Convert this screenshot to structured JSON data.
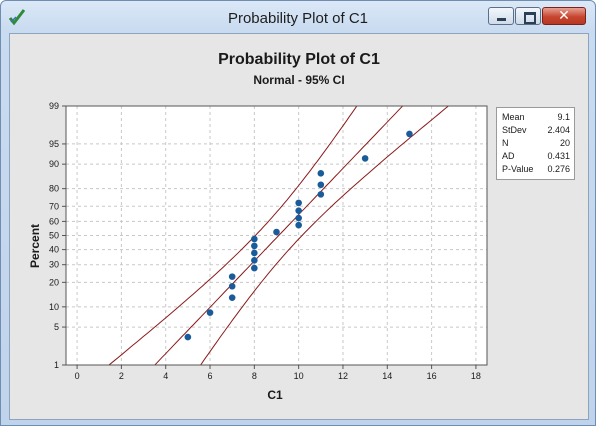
{
  "window": {
    "title": "Probability Plot of C1",
    "icon": "minitab-graph-icon",
    "controls": {
      "minimize": "minimize-icon",
      "maximize": "maximize-icon",
      "close": "close-icon"
    }
  },
  "chart_data": {
    "type": "scatter",
    "title": "Probability Plot of C1",
    "subtitle": "Normal - 95% CI",
    "xlabel": "C1",
    "ylabel": "Percent",
    "xlim": [
      -0.5,
      18.5
    ],
    "ylim_percent": [
      1,
      99
    ],
    "y_scale": "normal-probability",
    "x_ticks": [
      "0",
      "2",
      "4",
      "6",
      "8",
      "10",
      "12",
      "14",
      "16",
      "18"
    ],
    "y_ticks": [
      "1",
      "5",
      "10",
      "20",
      "30",
      "40",
      "50",
      "60",
      "70",
      "80",
      "90",
      "95",
      "99"
    ],
    "grid": true,
    "points": [
      {
        "x": 5,
        "percent": 3.4
      },
      {
        "x": 6,
        "percent": 8.3
      },
      {
        "x": 7,
        "percent": 13.2
      },
      {
        "x": 7,
        "percent": 18.1
      },
      {
        "x": 7,
        "percent": 23.0
      },
      {
        "x": 8,
        "percent": 27.9
      },
      {
        "x": 8,
        "percent": 32.8
      },
      {
        "x": 8,
        "percent": 37.7
      },
      {
        "x": 8,
        "percent": 42.6
      },
      {
        "x": 8,
        "percent": 47.5
      },
      {
        "x": 9,
        "percent": 52.5
      },
      {
        "x": 10,
        "percent": 57.4
      },
      {
        "x": 10,
        "percent": 62.3
      },
      {
        "x": 10,
        "percent": 67.2
      },
      {
        "x": 10,
        "percent": 72.1
      },
      {
        "x": 11,
        "percent": 77.0
      },
      {
        "x": 11,
        "percent": 81.9
      },
      {
        "x": 11,
        "percent": 86.8
      },
      {
        "x": 13,
        "percent": 91.7
      },
      {
        "x": 15,
        "percent": 96.6
      }
    ],
    "fit_line": {
      "mean": 9.1,
      "stdev": 2.404
    },
    "confidence_band": {
      "level": "95%",
      "n": 20
    },
    "colors": {
      "points": "#1a5b9a",
      "lines": "#8b1a1a",
      "grid": "#c8c8c8",
      "plot_bg": "#ffffff"
    },
    "legend_placement": "right"
  },
  "stats": [
    {
      "label": "Mean",
      "value": "9.1"
    },
    {
      "label": "StDev",
      "value": "2.404"
    },
    {
      "label": "N",
      "value": "20"
    },
    {
      "label": "AD",
      "value": "0.431"
    },
    {
      "label": "P-Value",
      "value": "0.276"
    }
  ]
}
